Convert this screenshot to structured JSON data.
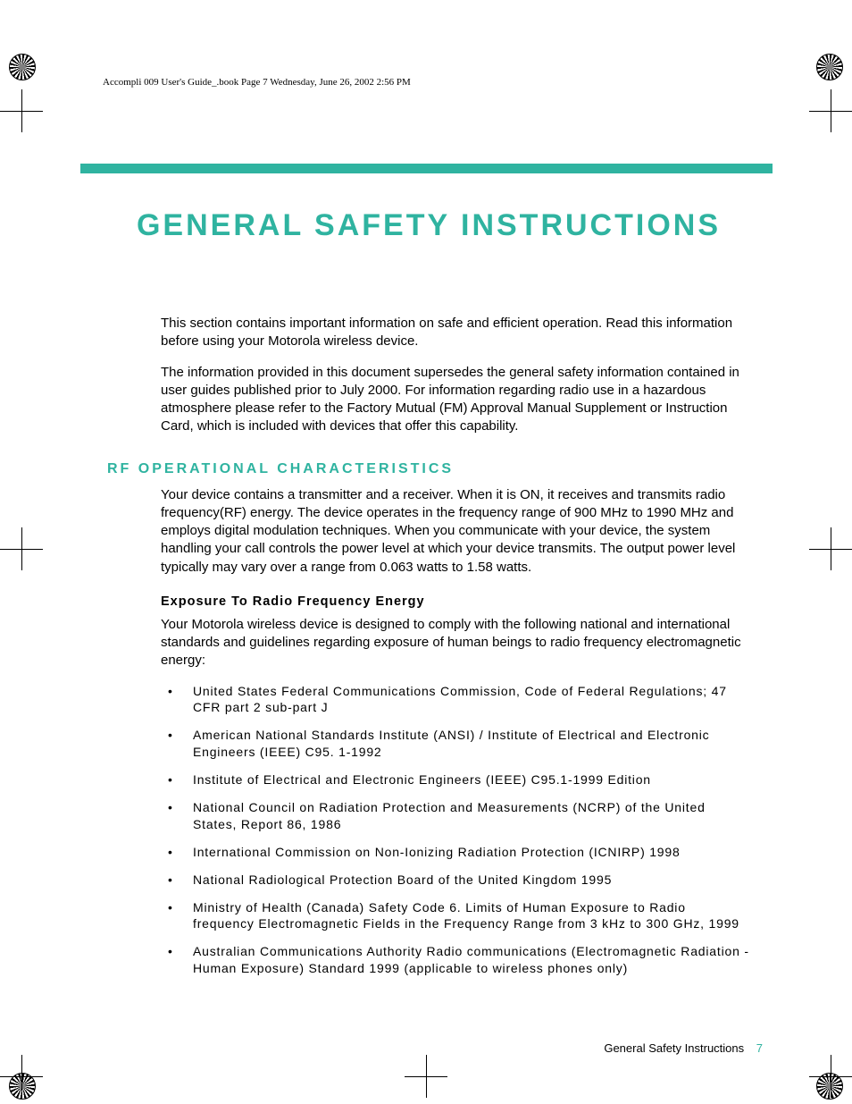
{
  "colors": {
    "teal": "#2fb3a0",
    "text": "#000000",
    "background": "#ffffff"
  },
  "header": {
    "runner": "Accompli 009 User's Guide_.book  Page 7  Wednesday, June 26, 2002  2:56 PM"
  },
  "title": "GENERAL SAFETY INSTRUCTIONS",
  "intro": {
    "p1": "This section contains important information on safe and efficient operation. Read this information before using your Motorola wireless device.",
    "p2": "The information provided in this document supersedes the general safety information contained in user guides published prior to July 2000. For information regarding radio use in a hazardous atmosphere please refer to the Factory Mutual (FM) Approval Manual Supplement or Instruction Card, which is included with devices that offer this capability."
  },
  "section": {
    "heading": "RF OPERATIONAL CHARACTERISTICS",
    "p1": "Your device contains a transmitter and a receiver. When it is ON, it receives and transmits radio frequency(RF) energy. The device operates in the frequency range of 900 MHz to 1990 MHz and employs digital modulation techniques. When you communicate with your device, the system handling your call controls the power level at which your device transmits. The output power level typically may vary over a range from 0.063 watts to 1.58 watts.",
    "sub_heading": "Exposure To Radio Frequency Energy",
    "p2": "Your Motorola wireless device is designed to comply with the following national and international standards and guidelines regarding exposure of human beings to radio frequency electromagnetic energy:",
    "bullets": [
      "United States Federal Communications Commission, Code of Federal Regulations; 47 CFR part 2 sub-part J",
      "American National Standards Institute (ANSI) / Institute of Electrical and Electronic Engineers (IEEE) C95. 1-1992",
      "Institute of Electrical and Electronic Engineers (IEEE) C95.1-1999 Edition",
      "National Council on Radiation Protection and Measurements (NCRP) of the United States, Report 86, 1986",
      "International Commission on Non-Ionizing Radiation Protection (ICNIRP) 1998",
      "National Radiological Protection Board of the United Kingdom 1995",
      "Ministry of Health (Canada) Safety Code 6. Limits of Human Exposure to Radio frequency Electromagnetic Fields in the Frequency Range from 3 kHz to 300 GHz, 1999",
      "Australian Communications Authority Radio communications (Electromagnetic Radiation - Human Exposure) Standard 1999 (applicable to wireless phones only)"
    ]
  },
  "footer": {
    "label": "General Safety Instructions",
    "page": "7"
  }
}
